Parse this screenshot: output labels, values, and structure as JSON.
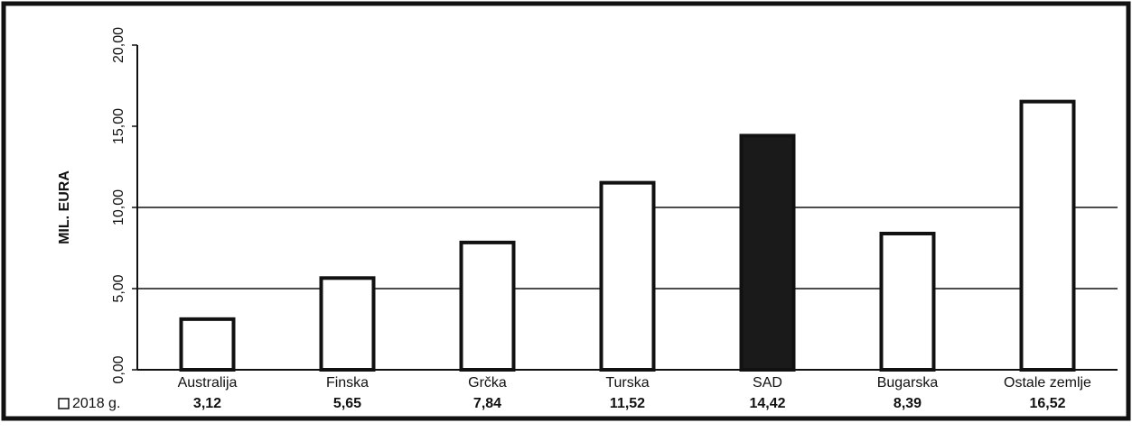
{
  "chart_data": {
    "type": "bar",
    "y_axis_label": "MIL. EURA",
    "categories": [
      "Australija",
      "Finska",
      "Grčka",
      "Turska",
      "SAD",
      "Bugarska",
      "Ostale zemlje"
    ],
    "series": [
      {
        "name": "2018 g.",
        "color": "#ffffff",
        "bar_colors": [
          "#ffffff",
          "#ffffff",
          "#ffffff",
          "#ffffff",
          "#1a1a1a",
          "#ffffff",
          "#ffffff"
        ],
        "values": [
          3.12,
          5.65,
          7.84,
          11.52,
          14.42,
          8.39,
          16.52
        ],
        "value_labels": [
          "3,12",
          "5,65",
          "7,84",
          "11,52",
          "14,42",
          "8,39",
          "16,52"
        ]
      }
    ],
    "ylim": [
      0,
      20
    ],
    "yticks": [
      {
        "value": 0,
        "label": "0,00"
      },
      {
        "value": 5,
        "label": "5,00"
      },
      {
        "value": 10,
        "label": "10,00"
      },
      {
        "value": 15,
        "label": "15,00"
      },
      {
        "value": 20,
        "label": "20,00"
      }
    ],
    "grid_ticks": [
      5,
      10
    ],
    "grid": true
  }
}
